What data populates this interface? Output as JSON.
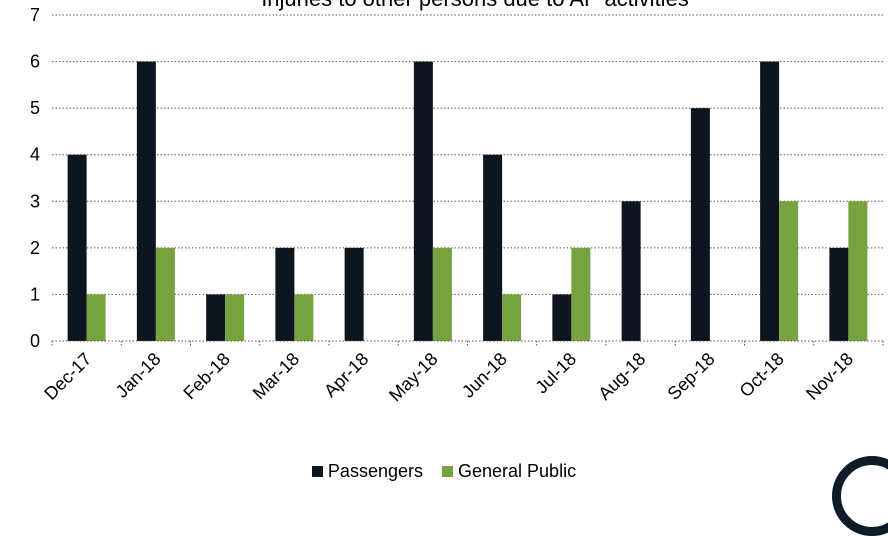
{
  "chart_data": {
    "type": "bar",
    "title": "Injuries to other persons due to AP activities",
    "categories": [
      "Dec-17",
      "Jan-18",
      "Feb-18",
      "Mar-18",
      "Apr-18",
      "May-18",
      "Jun-18",
      "Jul-18",
      "Aug-18",
      "Sep-18",
      "Oct-18",
      "Nov-18"
    ],
    "series": [
      {
        "name": "Passengers",
        "color": "#0d1520",
        "values": [
          4,
          6,
          1,
          2,
          2,
          6,
          4,
          1,
          3,
          5,
          6,
          2
        ]
      },
      {
        "name": "General Public",
        "color": "#77a33e",
        "values": [
          1,
          2,
          1,
          1,
          0,
          2,
          1,
          2,
          0,
          0,
          3,
          3
        ]
      }
    ],
    "ylim": [
      0,
      7
    ],
    "yticks": [
      0,
      1,
      2,
      3,
      4,
      5,
      6,
      7
    ],
    "grid": "horizontal dotted",
    "legend_position": "bottom"
  }
}
